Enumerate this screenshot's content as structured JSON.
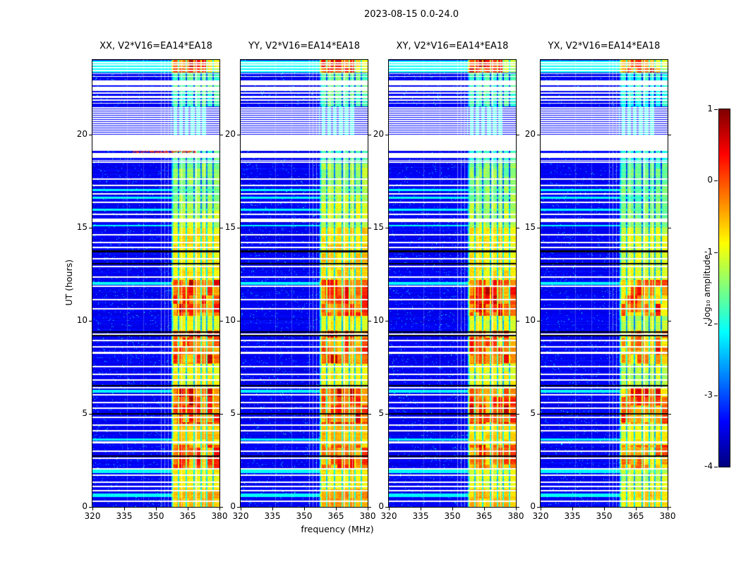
{
  "figure_title": "2023-08-15 0.0-24.0",
  "chart_data": {
    "type": "heatmap",
    "title": "2023-08-15 0.0-24.0",
    "panels": [
      {
        "title": "XX, V2*V16=EA14*EA18"
      },
      {
        "title": "YY, V2*V16=EA14*EA18"
      },
      {
        "title": "XY, V2*V16=EA14*EA18"
      },
      {
        "title": "YX, V2*V16=EA14*EA18"
      }
    ],
    "x": {
      "label": "frequency (MHz)",
      "range": [
        320,
        380
      ],
      "ticks": [
        320,
        335,
        350,
        365,
        380
      ]
    },
    "y": {
      "label": "UT (hours)",
      "range": [
        0,
        24
      ],
      "ticks": [
        0,
        5,
        10,
        15,
        20
      ]
    },
    "colorbar": {
      "label": "log₁₀ amplitude",
      "range": [
        -4,
        1
      ],
      "ticks": [
        1,
        0,
        -1,
        -2,
        -3,
        -4
      ],
      "colormap": "jet"
    },
    "features": {
      "background_level": -3.42,
      "speckle_probability": 0.02,
      "rfi_band_mhz": [
        357,
        380
      ],
      "panel_band_offsets": [
        0.05,
        0.12,
        0,
        -0.2
      ],
      "band_segments_ut": [
        [
          0,
          0.95,
          -0.55
        ],
        [
          0.95,
          2.1,
          -0.95
        ],
        [
          2.1,
          3.35,
          -0.3
        ],
        [
          3.35,
          4.45,
          -0.75
        ],
        [
          4.45,
          6.45,
          -0.2
        ],
        [
          6.45,
          7.7,
          -0.95
        ],
        [
          7.7,
          9.45,
          -0.3
        ],
        [
          9.45,
          10.25,
          -1.0
        ],
        [
          10.25,
          12.2,
          -0.15
        ],
        [
          12.2,
          15.0,
          -0.85
        ],
        [
          15.0,
          16.4,
          -1.25
        ],
        [
          16.4,
          18.45,
          -1.45
        ],
        [
          18.45,
          19.95,
          -1.8
        ],
        [
          19.95,
          21.52,
          -1.9
        ],
        [
          21.52,
          23.0,
          -1.8
        ],
        [
          23.0,
          23.3,
          -1.7
        ],
        [
          23.3,
          24.01,
          0.05
        ]
      ],
      "no_data_ut": [
        [
          18.58,
          19.95
        ],
        [
          21.55,
          23.28
        ],
        [
          15.28,
          15.5
        ],
        [
          8.23,
          8.33
        ],
        [
          5.98,
          6.07
        ],
        [
          3.4,
          3.53
        ]
      ],
      "hatched_ut": [
        19.95,
        21.52
      ],
      "cyan_rows_ut": [
        [
          23.3,
          23.97
        ],
        [
          16.95,
          17.06
        ],
        [
          16.55,
          16.66
        ],
        [
          15.9,
          16.0
        ],
        [
          15.06,
          15.16
        ],
        [
          11.92,
          12.06
        ],
        [
          6.12,
          6.28
        ],
        [
          3.54,
          3.66
        ],
        [
          1.8,
          2.02
        ],
        [
          0.52,
          0.72
        ]
      ],
      "data_lines_in_gaps_ut": [
        23.18,
        23.06,
        22.96,
        22.6,
        22.3,
        22.12,
        21.92,
        21.74,
        21.6,
        19.05,
        18.68
      ],
      "black_lines_ut": [
        13.72,
        13.05,
        9.38,
        9.2,
        6.52,
        5.0,
        2.72
      ],
      "white_lines_ut": [
        23.86,
        23.72,
        23.58,
        23.44,
        18.5,
        17.62,
        17.26,
        16.82,
        16.36,
        15.72,
        14.62,
        14.2,
        13.92,
        13.32,
        12.9,
        12.35,
        11.85,
        11.12,
        10.62,
        9.29,
        8.92,
        8.6,
        7.52,
        7.12,
        6.82,
        6.4,
        5.62,
        5.3,
        4.82,
        4.38,
        4.1,
        3.0,
        2.6,
        2.06,
        1.7,
        1.32,
        1.1,
        0.86,
        0.32
      ],
      "red_streak": {
        "panel_index": 0,
        "ut": 19.05,
        "freq_range_mhz": [
          339,
          369
        ]
      },
      "vertical_light_lines_mhz": [
        352.4,
        354.2,
        355.9,
        344.1,
        336.5
      ],
      "band_dark_columns_mhz": [
        360.8,
        364.3,
        367.9,
        371.2,
        374.1,
        377.0
      ],
      "band_white_columns_mhz": [
        362.3,
        369.0,
        372.7
      ]
    }
  }
}
